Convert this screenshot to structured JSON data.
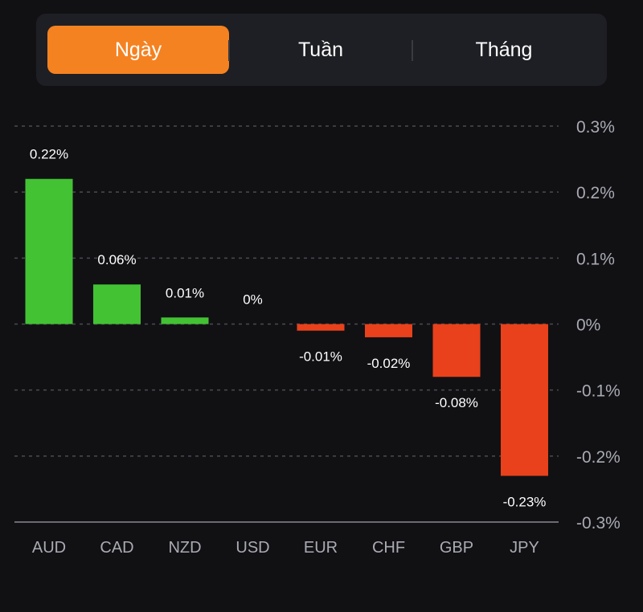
{
  "tabs": [
    {
      "label": "Ngày",
      "active": true
    },
    {
      "label": "Tuần",
      "active": false
    },
    {
      "label": "Tháng",
      "active": false
    }
  ],
  "colors": {
    "accent": "#f58220",
    "positive": "#43c234",
    "negative": "#e8411b",
    "grid": "#4a4b52",
    "axis_text": "#a9abb3"
  },
  "chart_data": {
    "type": "bar",
    "categories": [
      "AUD",
      "CAD",
      "NZD",
      "USD",
      "EUR",
      "CHF",
      "GBP",
      "JPY"
    ],
    "values": [
      0.22,
      0.06,
      0.01,
      0,
      -0.01,
      -0.02,
      -0.08,
      -0.23
    ],
    "data_labels": [
      "0.22%",
      "0.06%",
      "0.01%",
      "0%",
      "-0.01%",
      "-0.02%",
      "-0.08%",
      "-0.23%"
    ],
    "y_ticks": [
      0.3,
      0.2,
      0.1,
      0,
      -0.1,
      -0.2,
      -0.3
    ],
    "y_tick_labels": [
      "0.3%",
      "0.2%",
      "0.1%",
      "0%",
      "-0.1%",
      "-0.2%",
      "-0.3%"
    ],
    "ylim": [
      -0.3,
      0.3
    ],
    "ylabel_position": "right",
    "grid": true
  }
}
